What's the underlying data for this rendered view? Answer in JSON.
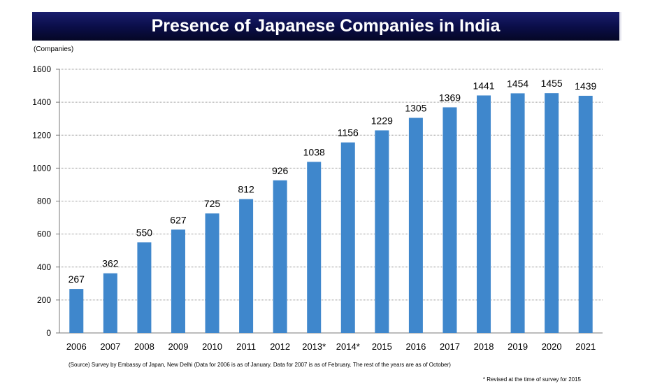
{
  "chart_data": {
    "type": "bar",
    "title": "Presence of Japanese Companies in India",
    "unit_label": "(Companies)",
    "categories": [
      "2006",
      "2007",
      "2008",
      "2009",
      "2010",
      "2011",
      "2012",
      "2013*",
      "2014*",
      "2015",
      "2016",
      "2017",
      "2018",
      "2019",
      "2020",
      "2021"
    ],
    "values": [
      267,
      362,
      550,
      627,
      725,
      812,
      926,
      1038,
      1156,
      1229,
      1305,
      1369,
      1441,
      1454,
      1455,
      1439
    ],
    "ylim": [
      0,
      1600
    ],
    "yticks": [
      0,
      200,
      400,
      600,
      800,
      1000,
      1200,
      1400,
      1600
    ],
    "grid": true,
    "bar_color": "#3f87cc",
    "title_bar_color": "#0b0e4a"
  },
  "notes": {
    "source": "(Source) Survey by Embassy of Japan, New Delhi   (Data for 2006 is as of January. Data for 2007 is as of February. The rest of the years are as of October)",
    "revised": "* Revised at the time of survey for 2015"
  }
}
